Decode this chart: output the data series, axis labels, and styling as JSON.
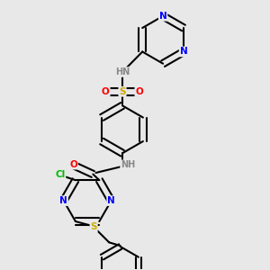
{
  "background_color": "#e8e8e8",
  "bond_color": "#000000",
  "atom_colors": {
    "N": "#0000ff",
    "O": "#ff0000",
    "S": "#ccaa00",
    "Cl": "#00bb00",
    "C": "#000000",
    "H": "#888888",
    "HN": "#888888"
  },
  "figsize": [
    3.0,
    3.0
  ],
  "dpi": 100
}
